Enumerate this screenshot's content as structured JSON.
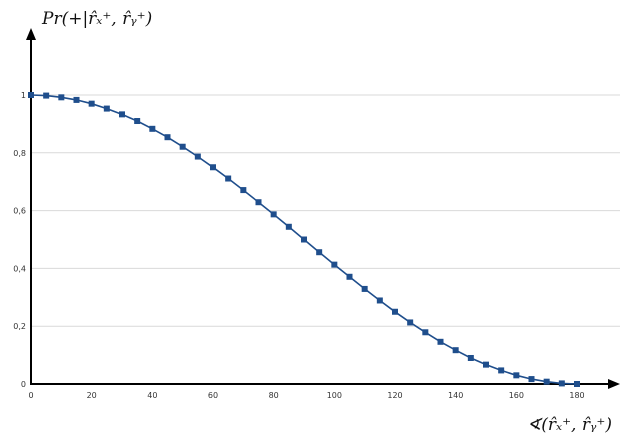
{
  "chart_data": {
    "type": "line",
    "title": "",
    "ylabel": "Pr(+|r̂ₓ⁺, r̂ᵧ⁺)",
    "xlabel": "∢(r̂ₓ⁺, r̂ᵧ⁺)",
    "xlim": [
      0,
      180
    ],
    "ylim": [
      0,
      1
    ],
    "x_ticks": [
      0,
      20,
      40,
      60,
      80,
      100,
      120,
      140,
      160,
      180
    ],
    "x_tick_labels": [
      "0",
      "20",
      "40",
      "60",
      "80",
      "100",
      "120",
      "140",
      "160",
      "180"
    ],
    "y_ticks": [
      0,
      0.2,
      0.4,
      0.6,
      0.8,
      1
    ],
    "y_tick_labels": [
      "0",
      "0,2",
      "0,4",
      "0,6",
      "0,8",
      "1"
    ],
    "grid": true,
    "legend": "none",
    "series": [
      {
        "color": "#1f4e8c",
        "marker": "square",
        "x": [
          0,
          5,
          10,
          15,
          20,
          25,
          30,
          35,
          40,
          45,
          50,
          55,
          60,
          65,
          70,
          75,
          80,
          85,
          90,
          95,
          100,
          105,
          110,
          115,
          120,
          125,
          130,
          135,
          140,
          145,
          150,
          155,
          160,
          165,
          170,
          175,
          180
        ],
        "y": [
          1.0,
          0.998,
          0.992,
          0.983,
          0.97,
          0.953,
          0.933,
          0.91,
          0.883,
          0.854,
          0.821,
          0.787,
          0.75,
          0.711,
          0.671,
          0.629,
          0.587,
          0.544,
          0.5,
          0.456,
          0.413,
          0.371,
          0.329,
          0.289,
          0.25,
          0.213,
          0.179,
          0.146,
          0.117,
          0.09,
          0.067,
          0.047,
          0.03,
          0.017,
          0.008,
          0.002,
          0.0
        ]
      }
    ]
  }
}
